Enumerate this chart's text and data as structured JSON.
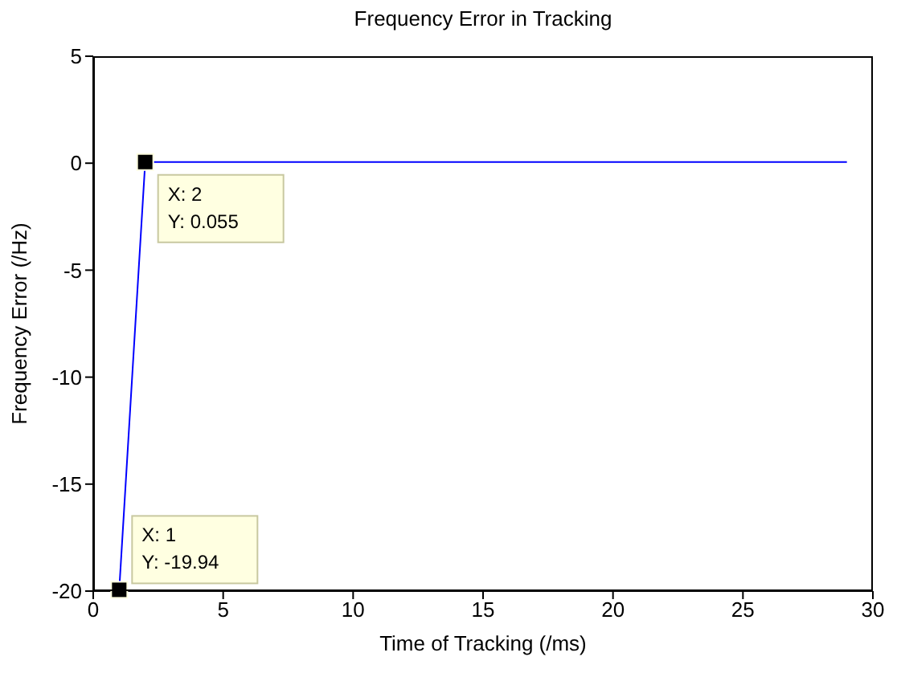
{
  "chart_data": {
    "type": "line",
    "title": "Frequency Error in Tracking",
    "xlabel": "Time of Tracking (/ms)",
    "ylabel": "Frequency Error (/Hz)",
    "x": [
      1,
      2,
      29
    ],
    "series": [
      {
        "color": "#0000ff",
        "values": [
          -19.94,
          0.055,
          0.055
        ]
      }
    ],
    "xlim": [
      0,
      30
    ],
    "xticks": [
      0,
      5,
      10,
      15,
      20,
      25,
      30
    ],
    "ylim": [
      -20,
      5
    ],
    "yticks": [
      -20,
      -15,
      -10,
      -5,
      0,
      5
    ],
    "grid": false,
    "legend": false,
    "line_style": "solid",
    "annotations": [
      {
        "text": "X: 2\nY: 0.055",
        "x": 2,
        "y": 0.055
      },
      {
        "text": "X: 1\nY: -19.94",
        "x": 1,
        "y": -19.94
      }
    ]
  }
}
